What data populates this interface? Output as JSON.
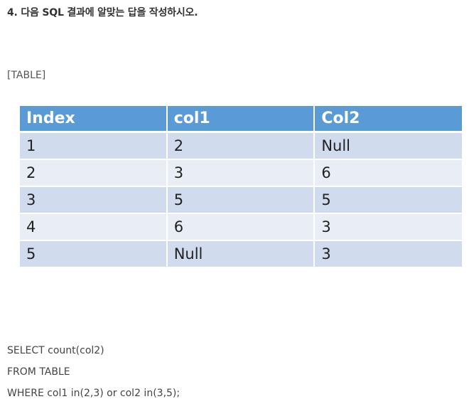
{
  "question": "4. 다음 SQL 결과에 알맞는 답을 작성하시오.",
  "table_label": "[TABLE]",
  "table": {
    "headers": [
      "Index",
      "col1",
      "Col2"
    ],
    "rows": [
      [
        "1",
        "2",
        "Null"
      ],
      [
        "2",
        "3",
        "6"
      ],
      [
        "3",
        "5",
        "5"
      ],
      [
        "4",
        "6",
        "3"
      ],
      [
        "5",
        "Null",
        "3"
      ]
    ]
  },
  "sql": {
    "line1": "SELECT count(col2)",
    "line2": "FROM TABLE",
    "line3": "WHERE col1 in(2,3) or col2 in(3,5);"
  },
  "colors": {
    "header_bg": "#5b9bd5",
    "row_odd_bg": "#d0dbee",
    "row_even_bg": "#e9edf6"
  }
}
